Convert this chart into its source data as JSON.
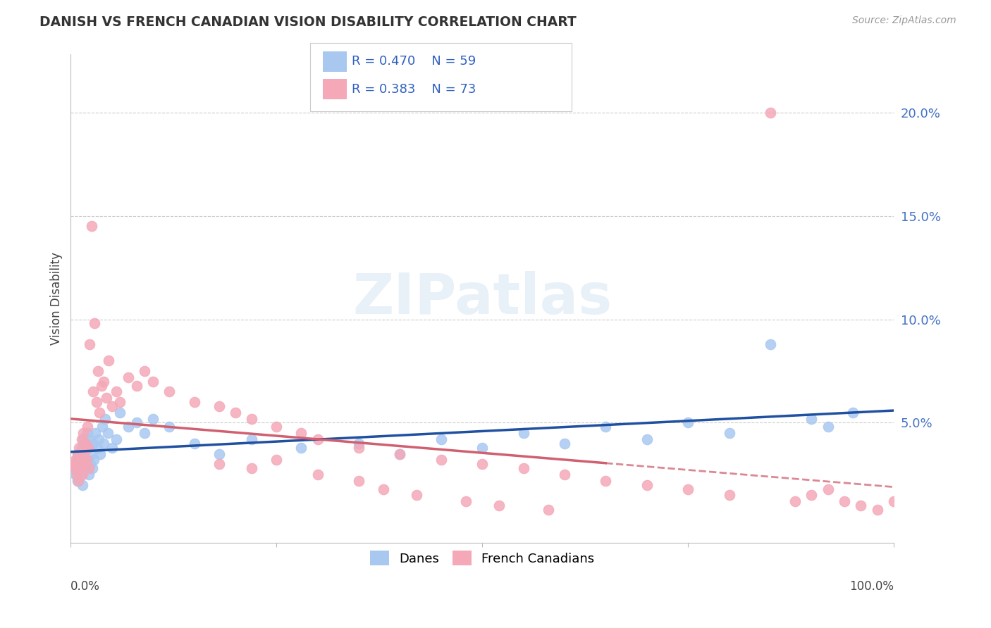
{
  "title": "DANISH VS FRENCH CANADIAN VISION DISABILITY CORRELATION CHART",
  "source": "Source: ZipAtlas.com",
  "ylabel": "Vision Disability",
  "legend_blue_r": "R = 0.470",
  "legend_blue_n": "N = 59",
  "legend_pink_r": "R = 0.383",
  "legend_pink_n": "N = 73",
  "blue_color": "#A8C8F0",
  "pink_color": "#F4A8B8",
  "blue_line_color": "#2050A0",
  "pink_line_color": "#D06070",
  "legend_text_color": "#3060C0",
  "right_axis_color": "#4472C4",
  "y_tick_vals": [
    0.0,
    0.05,
    0.1,
    0.15,
    0.2
  ],
  "y_tick_labels": [
    "",
    "5.0%",
    "10.0%",
    "15.0%",
    "20.0%"
  ],
  "xlim": [
    0,
    100
  ],
  "ylim": [
    -0.008,
    0.228
  ],
  "danes_x": [
    0.4,
    0.5,
    0.6,
    0.7,
    0.8,
    0.9,
    1.0,
    1.1,
    1.2,
    1.3,
    1.4,
    1.5,
    1.6,
    1.7,
    1.8,
    1.9,
    2.0,
    2.1,
    2.2,
    2.3,
    2.4,
    2.5,
    2.6,
    2.7,
    2.8,
    3.0,
    3.2,
    3.4,
    3.6,
    3.8,
    4.0,
    4.2,
    4.5,
    5.0,
    5.5,
    6.0,
    7.0,
    8.0,
    9.0,
    10.0,
    12.0,
    15.0,
    18.0,
    22.0,
    28.0,
    35.0,
    40.0,
    45.0,
    50.0,
    55.0,
    60.0,
    65.0,
    70.0,
    75.0,
    80.0,
    85.0,
    90.0,
    92.0,
    95.0
  ],
  "danes_y": [
    0.028,
    0.03,
    0.025,
    0.032,
    0.022,
    0.035,
    0.028,
    0.03,
    0.025,
    0.038,
    0.02,
    0.042,
    0.035,
    0.028,
    0.04,
    0.032,
    0.045,
    0.038,
    0.025,
    0.042,
    0.03,
    0.035,
    0.028,
    0.04,
    0.032,
    0.045,
    0.038,
    0.042,
    0.035,
    0.048,
    0.04,
    0.052,
    0.045,
    0.038,
    0.042,
    0.055,
    0.048,
    0.05,
    0.045,
    0.052,
    0.048,
    0.04,
    0.035,
    0.042,
    0.038,
    0.04,
    0.035,
    0.042,
    0.038,
    0.045,
    0.04,
    0.048,
    0.042,
    0.05,
    0.045,
    0.088,
    0.052,
    0.048,
    0.055
  ],
  "french_x": [
    0.3,
    0.5,
    0.6,
    0.7,
    0.8,
    0.9,
    1.0,
    1.1,
    1.2,
    1.3,
    1.4,
    1.5,
    1.6,
    1.7,
    1.8,
    1.9,
    2.0,
    2.1,
    2.2,
    2.3,
    2.5,
    2.7,
    2.9,
    3.1,
    3.3,
    3.5,
    3.7,
    4.0,
    4.3,
    4.6,
    5.0,
    5.5,
    6.0,
    7.0,
    8.0,
    9.0,
    10.0,
    12.0,
    15.0,
    18.0,
    20.0,
    22.0,
    25.0,
    28.0,
    30.0,
    35.0,
    40.0,
    45.0,
    50.0,
    55.0,
    60.0,
    65.0,
    70.0,
    75.0,
    80.0,
    85.0,
    88.0,
    90.0,
    92.0,
    94.0,
    96.0,
    98.0,
    100.0,
    18.0,
    22.0,
    25.0,
    30.0,
    35.0,
    38.0,
    42.0,
    48.0,
    52.0,
    58.0
  ],
  "french_y": [
    0.03,
    0.028,
    0.032,
    0.025,
    0.035,
    0.022,
    0.038,
    0.028,
    0.032,
    0.042,
    0.025,
    0.045,
    0.035,
    0.03,
    0.04,
    0.032,
    0.048,
    0.038,
    0.028,
    0.088,
    0.145,
    0.065,
    0.098,
    0.06,
    0.075,
    0.055,
    0.068,
    0.07,
    0.062,
    0.08,
    0.058,
    0.065,
    0.06,
    0.072,
    0.068,
    0.075,
    0.07,
    0.065,
    0.06,
    0.058,
    0.055,
    0.052,
    0.048,
    0.045,
    0.042,
    0.038,
    0.035,
    0.032,
    0.03,
    0.028,
    0.025,
    0.022,
    0.02,
    0.018,
    0.015,
    0.2,
    0.012,
    0.015,
    0.018,
    0.012,
    0.01,
    0.008,
    0.012,
    0.03,
    0.028,
    0.032,
    0.025,
    0.022,
    0.018,
    0.015,
    0.012,
    0.01,
    0.008
  ]
}
